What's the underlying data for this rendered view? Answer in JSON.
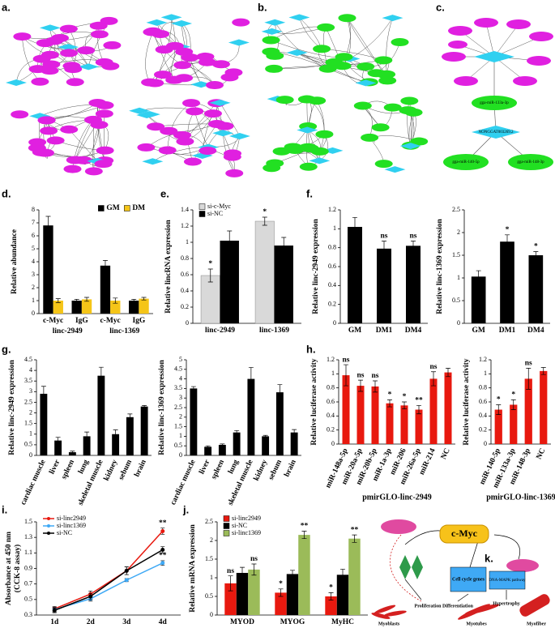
{
  "panel_labels": [
    "a.",
    "b.",
    "c.",
    "d.",
    "e.",
    "f.",
    "g.",
    "h.",
    "i.",
    "j.",
    "k."
  ],
  "network_c": {
    "hub": "NONGGAT003269.2",
    "mirnas": [
      "gga-miR-133a-3p",
      "gga-miR-140-5p",
      "gga-miR-148-3p"
    ]
  },
  "diagram_k": {
    "regulator": "c-Myc",
    "genes": "Cell cycle genes",
    "pathway": "DNA-MAPK pathway",
    "stages": [
      "Proliferation",
      "Differentiation",
      "Hypertrophy"
    ],
    "cells": [
      "Myoblasts",
      "Myotubes",
      "Myofiber"
    ]
  },
  "chart_data": [
    {
      "type": "bar",
      "ylabel": "Relative abundance",
      "categories": [
        "c-Myc",
        "IgG",
        "c-Myc",
        "IgG"
      ],
      "group_labels": [
        "linc-2949",
        "linc-1369"
      ],
      "ylim": [
        0,
        8
      ],
      "yticks": [
        0,
        1,
        2,
        3,
        4,
        5,
        6,
        7,
        8
      ],
      "legend": "upper right",
      "series": [
        {
          "name": "GM",
          "color": "#000000",
          "values": [
            6.8,
            1.0,
            3.7,
            1.0
          ],
          "errors": [
            0.7,
            0.1,
            0.4,
            0.1
          ]
        },
        {
          "name": "DM",
          "color": "#f5c518",
          "values": [
            1.0,
            1.1,
            1.0,
            1.15
          ],
          "errors": [
            0.15,
            0.15,
            0.2,
            0.1
          ]
        }
      ]
    },
    {
      "type": "bar",
      "ylabel": "Relative lincRNA expression",
      "categories": [
        "linc-2949",
        "linc-1369"
      ],
      "ylim": [
        0,
        1.4
      ],
      "yticks": [
        0,
        0.2,
        0.4,
        0.6,
        0.8,
        1,
        1.2,
        1.4
      ],
      "legend": "upper left",
      "series": [
        {
          "name": "si-c-Myc",
          "color": "#d9d9d9",
          "values": [
            0.59,
            1.26
          ],
          "errors": [
            0.08,
            0.05
          ],
          "labels": [
            "*",
            "*"
          ]
        },
        {
          "name": "si-NC",
          "color": "#000000",
          "values": [
            1.02,
            0.96
          ],
          "errors": [
            0.12,
            0.1
          ]
        }
      ]
    },
    {
      "type": "bar",
      "ylabel": "Relative linc-2949 expression",
      "categories": [
        "GM",
        "DM1",
        "DM4"
      ],
      "color": "#000000",
      "values": [
        1.02,
        0.79,
        0.82
      ],
      "errors": [
        0.1,
        0.08,
        0.05
      ],
      "labels": [
        null,
        "ns",
        "ns"
      ],
      "ylim": [
        0,
        1.2
      ],
      "yticks": [
        0,
        0.2,
        0.4,
        0.6,
        0.8,
        1,
        1.2
      ]
    },
    {
      "type": "bar",
      "ylabel": "Relative linc-1369 expression",
      "categories": [
        "GM",
        "DM1",
        "DM4"
      ],
      "color": "#000000",
      "values": [
        1.03,
        1.8,
        1.5
      ],
      "errors": [
        0.13,
        0.15,
        0.08
      ],
      "labels": [
        null,
        "*",
        "*"
      ],
      "ylim": [
        0,
        2.5
      ],
      "yticks": [
        0,
        0.5,
        1,
        1.5,
        2,
        2.5
      ]
    },
    {
      "type": "bar",
      "ylabel": "Relative linc-2949 expression",
      "color": "#000000",
      "categories": [
        "cardiac muscle",
        "liver",
        "spleen",
        "lung",
        "skeletal muscle",
        "kidney",
        "sebum",
        "brain"
      ],
      "values": [
        2.9,
        0.7,
        0.15,
        0.9,
        3.75,
        1.0,
        1.8,
        2.3
      ],
      "errors": [
        0.35,
        0.15,
        0.05,
        0.2,
        0.4,
        0.2,
        0.15,
        0.05
      ],
      "ylim": [
        0,
        4.5
      ],
      "yticks": [
        0,
        0.5,
        1,
        1.5,
        2,
        2.5,
        3,
        3.5,
        4,
        4.5
      ]
    },
    {
      "type": "bar",
      "ylabel": "Relative linc-1369 expression",
      "color": "#000000",
      "categories": [
        "cardiac muscle",
        "liver",
        "spleen",
        "lung",
        "skeletal muscle",
        "kidney",
        "sebum",
        "brain"
      ],
      "values": [
        3.5,
        0.45,
        0.55,
        1.2,
        4.0,
        1.0,
        3.3,
        1.2
      ],
      "errors": [
        0.1,
        0.05,
        0.05,
        0.1,
        0.6,
        0.05,
        0.4,
        0.15
      ],
      "ylim": [
        0,
        5
      ],
      "yticks": [
        0,
        0.5,
        1,
        1.5,
        2,
        2.5,
        3,
        3.5,
        4,
        4.5,
        5
      ]
    },
    {
      "type": "bar",
      "ylabel": "Relative luciferase activity",
      "xlabel": "pmirGLO-linc-2949",
      "color": "#e8190f",
      "categories": [
        "miR-148a-5p",
        "miR-20a-5p",
        "miR-20b-5p",
        "miR-1a-3p",
        "miR-206",
        "miR-26a-5p",
        "miR-214",
        "NC"
      ],
      "values": [
        0.98,
        0.83,
        0.82,
        0.58,
        0.55,
        0.49,
        0.93,
        1.02
      ],
      "errors": [
        0.15,
        0.08,
        0.08,
        0.05,
        0.05,
        0.06,
        0.1,
        0.06
      ],
      "labels": [
        "ns",
        "ns",
        "ns",
        "*",
        "*",
        "**",
        "ns",
        null
      ],
      "ylim": [
        0,
        1.2
      ],
      "yticks": [
        0,
        0.2,
        0.4,
        0.6,
        0.8,
        1,
        1.2
      ]
    },
    {
      "type": "bar",
      "ylabel": "Relative luciferase activity",
      "xlabel": "pmirGLO-linc-1369",
      "color": "#e8190f",
      "categories": [
        "miR-140-5p",
        "miR-133a-3p",
        "miR-148-3p",
        "NC"
      ],
      "values": [
        0.49,
        0.56,
        0.93,
        1.04
      ],
      "errors": [
        0.07,
        0.07,
        0.15,
        0.05
      ],
      "labels": [
        "*",
        "*",
        "ns",
        null
      ],
      "ylim": [
        0,
        1.2
      ],
      "yticks": [
        0,
        0.2,
        0.4,
        0.6,
        0.8,
        1,
        1.2
      ]
    },
    {
      "type": "line",
      "ylabel": [
        "Absorbance at 450 nm",
        "(CCK-8 assay)"
      ],
      "categories": [
        "1d",
        "2d",
        "3d",
        "4d"
      ],
      "ylim": [
        0.3,
        1.5
      ],
      "yticks": [
        0.3,
        0.5,
        0.7,
        0.9,
        1.1,
        1.3,
        1.5
      ],
      "legend": "upper left",
      "series": [
        {
          "name": "si-linc2949",
          "color": "#e8190f",
          "values": [
            0.38,
            0.57,
            0.87,
            1.38
          ],
          "errors": [
            0.03,
            0.04,
            0.05,
            0.04
          ],
          "labels": [
            null,
            null,
            null,
            "**"
          ]
        },
        {
          "name": "si-linc1369",
          "color": "#3fa9f5",
          "values": [
            0.37,
            0.51,
            0.75,
            0.97
          ],
          "errors": [
            0.03,
            0.03,
            0.02,
            0.03
          ],
          "labels": [
            null,
            null,
            null,
            "**"
          ]
        },
        {
          "name": "si-NC",
          "color": "#000000",
          "values": [
            0.36,
            0.54,
            0.87,
            1.14
          ],
          "errors": [
            0.03,
            0.04,
            0.05,
            0.04
          ]
        }
      ]
    },
    {
      "type": "bar",
      "ylabel": "Relative mRNA expression",
      "categories": [
        "MYOD",
        "MYOG",
        "MyHC"
      ],
      "ylim": [
        0,
        2.5
      ],
      "yticks": [
        0,
        0.5,
        1,
        1.5,
        2,
        2.5
      ],
      "legend": "upper left",
      "series": [
        {
          "name": "si-linc2949",
          "color": "#e8190f",
          "values": [
            0.85,
            0.6,
            0.5
          ],
          "errors": [
            0.2,
            0.1,
            0.1
          ],
          "labels": [
            "ns",
            "*",
            "*"
          ]
        },
        {
          "name": "si-NC",
          "color": "#000000",
          "values": [
            1.13,
            1.1,
            1.08
          ],
          "errors": [
            0.15,
            0.1,
            0.15
          ]
        },
        {
          "name": "si-linc1369",
          "color": "#9bbb59",
          "values": [
            1.22,
            2.15,
            2.05
          ],
          "errors": [
            0.15,
            0.1,
            0.1
          ],
          "labels": [
            "ns",
            "**",
            "**"
          ]
        }
      ]
    }
  ]
}
